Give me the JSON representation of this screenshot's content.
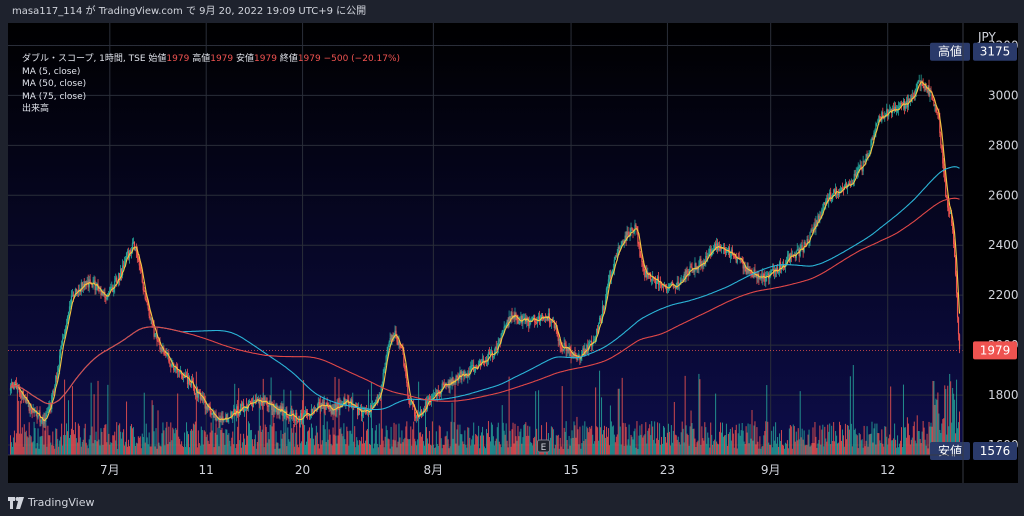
{
  "header": {
    "publish_line": "masa117_114 が TradingView.com で 9月 20, 2022 19:09 UTC+9 に公開"
  },
  "legend": {
    "symbol": "ダブル・スコープ, 1時間, TSE",
    "open_label": "始値",
    "open_value": "1979",
    "high_label": "高値",
    "high_value": "1979",
    "low_label": "安値",
    "low_value": "1979",
    "close_label": "終値",
    "close_value": "1979",
    "change": "−500 (−20.17%)",
    "ma5": "MA (5, close)",
    "ma50": "MA (50, close)",
    "ma75": "MA (75, close)",
    "volume": "出来高"
  },
  "footer": {
    "brand": "TradingView"
  },
  "chart_data": {
    "type": "line",
    "title": "ダブル・スコープ, 1時間, TSE",
    "currency_label": "JPY",
    "y_ticks": [
      1600,
      1800,
      2000,
      2200,
      2400,
      2600,
      2800,
      3000,
      3200
    ],
    "ylim": [
      1560,
      3290
    ],
    "x_ticks": [
      {
        "label": "7月",
        "i": 14
      },
      {
        "label": "11",
        "i": 28
      },
      {
        "label": "20",
        "i": 42
      },
      {
        "label": "8月",
        "i": 61
      },
      {
        "label": "15",
        "i": 81
      },
      {
        "label": "23",
        "i": 95
      },
      {
        "label": "9月",
        "i": 110
      },
      {
        "label": "12",
        "i": 127
      }
    ],
    "price_badges": [
      {
        "label": "高値",
        "value": "3175",
        "price": 3175,
        "color": "#2a3a6a"
      },
      {
        "label": "",
        "value": "1979",
        "price": 1979,
        "color": "#ef5350"
      },
      {
        "label": "安値",
        "value": "1576",
        "price": 1576,
        "color": "#2a3a6a"
      }
    ],
    "colors": {
      "up": "#26a69a",
      "down": "#ef5350",
      "ma5": "#f5c542",
      "ma50": "#2bb4d6",
      "ma75": "#e04848",
      "last_price_line": "#ef5350"
    },
    "series": [
      {
        "name": "MA (5, close)",
        "values": []
      },
      {
        "name": "MA (50, close)",
        "values": []
      },
      {
        "name": "MA (75, close)",
        "values": []
      }
    ],
    "close_path": [
      1840,
      1790,
      1750,
      1720,
      1700,
      1760,
      1900,
      2050,
      2180,
      2230,
      2240,
      2250,
      2220,
      2200,
      2230,
      2280,
      2350,
      2400,
      2300,
      2150,
      2050,
      1980,
      1950,
      1900,
      1880,
      1860,
      1820,
      1780,
      1740,
      1710,
      1700,
      1720,
      1740,
      1750,
      1760,
      1770,
      1780,
      1760,
      1740,
      1730,
      1720,
      1710,
      1720,
      1740,
      1760,
      1750,
      1740,
      1760,
      1780,
      1750,
      1730,
      1740,
      1760,
      1820,
      2010,
      2040,
      1990,
      1780,
      1720,
      1740,
      1780,
      1810,
      1830,
      1850,
      1870,
      1880,
      1900,
      1920,
      1940,
      1960,
      2000,
      2080,
      2120,
      2100,
      2090,
      2100,
      2110,
      2120,
      2100,
      2000,
      1980,
      1960,
      1960,
      1990,
      2020,
      2120,
      2250,
      2350,
      2420,
      2450,
      2470,
      2300,
      2270,
      2260,
      2240,
      2230,
      2250,
      2280,
      2300,
      2320,
      2340,
      2380,
      2400,
      2380,
      2360,
      2340,
      2300,
      2290,
      2280,
      2270,
      2290,
      2320,
      2340,
      2360,
      2380,
      2420,
      2480,
      2540,
      2590,
      2610,
      2620,
      2640,
      2680,
      2720,
      2790,
      2900,
      2920,
      2930,
      2950,
      2960,
      2980,
      3060,
      3040,
      3000,
      2900,
      2600,
      2480,
      1979
    ]
  }
}
